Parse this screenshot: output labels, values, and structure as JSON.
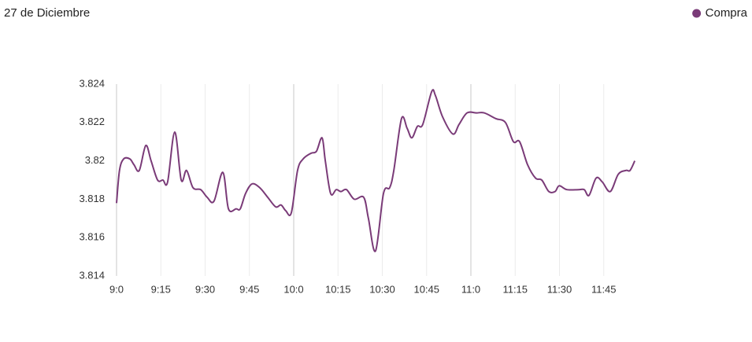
{
  "chart_data": {
    "type": "line",
    "title": "27 de Diciembre",
    "legend": "top-right",
    "series": [
      {
        "name": "Compra",
        "color": "#7a3b78",
        "x": [
          540,
          541,
          542.4,
          544.5,
          545.9,
          547.7,
          549.9,
          551.7,
          553.9,
          555.7,
          557.3,
          559.7,
          561.9,
          563.7,
          565.9,
          568.5,
          570.7,
          573,
          576,
          577.9,
          580.5,
          581.9,
          583.7,
          585.9,
          588.5,
          591.2,
          593.9,
          595.7,
          597.3,
          599.2,
          601.3,
          603.2,
          605.9,
          607.7,
          609.6,
          610.7,
          612.5,
          614.4,
          616,
          617.9,
          620.5,
          623.7,
          625.3,
          627.7,
          630.4,
          632.5,
          633.9,
          636.5,
          638.4,
          640,
          641.9,
          643.7,
          646.7,
          648,
          650.4,
          653.9,
          656,
          658.7,
          661.9,
          664.5,
          668.5,
          671.7,
          674.4,
          676.5,
          679.2,
          681.9,
          684,
          686.4,
          688.5,
          689.9,
          692.5,
          696.5,
          698.4,
          700,
          702.4,
          704.5,
          707.2,
          709.9,
          712.5,
          713.9,
          715.5
        ],
        "values": [
          3.8178,
          3.8195,
          3.8201,
          3.8201,
          3.8198,
          3.8195,
          3.8208,
          3.82,
          3.819,
          3.819,
          3.8189,
          3.8215,
          3.819,
          3.8195,
          3.8186,
          3.8185,
          3.8181,
          3.8179,
          3.8194,
          3.8175,
          3.8175,
          3.8175,
          3.8183,
          3.8188,
          3.8186,
          3.8181,
          3.8176,
          3.8177,
          3.8174,
          3.8173,
          3.8195,
          3.8201,
          3.8204,
          3.8205,
          3.8212,
          3.82,
          3.8183,
          3.8185,
          3.8184,
          3.8185,
          3.818,
          3.8181,
          3.817,
          3.8153,
          3.8183,
          3.8186,
          3.8195,
          3.8222,
          3.8217,
          3.8212,
          3.8218,
          3.8219,
          3.8236,
          3.8234,
          3.8223,
          3.8214,
          3.8219,
          3.8225,
          3.8225,
          3.8225,
          3.8222,
          3.822,
          3.821,
          3.821,
          3.8198,
          3.8191,
          3.819,
          3.8184,
          3.8184,
          3.8187,
          3.8185,
          3.8185,
          3.8185,
          3.8182,
          3.8191,
          3.8189,
          3.8184,
          3.8193,
          3.8195,
          3.8195,
          3.82
        ]
      }
    ],
    "xlim": [
      540,
      720
    ],
    "xticks": [
      {
        "value": 540,
        "label": "9:0"
      },
      {
        "value": 555,
        "label": "9:15"
      },
      {
        "value": 570,
        "label": "9:30"
      },
      {
        "value": 585,
        "label": "9:45"
      },
      {
        "value": 600,
        "label": "10:0"
      },
      {
        "value": 615,
        "label": "10:15"
      },
      {
        "value": 630,
        "label": "10:30"
      },
      {
        "value": 645,
        "label": "10:45"
      },
      {
        "value": 660,
        "label": "11:0"
      },
      {
        "value": 675,
        "label": "11:15"
      },
      {
        "value": 690,
        "label": "11:30"
      },
      {
        "value": 705,
        "label": "11:45"
      }
    ],
    "ylim": [
      3.814,
      3.824
    ],
    "yticks": [
      3.814,
      3.816,
      3.818,
      3.82,
      3.822,
      3.824
    ],
    "grid": true
  }
}
